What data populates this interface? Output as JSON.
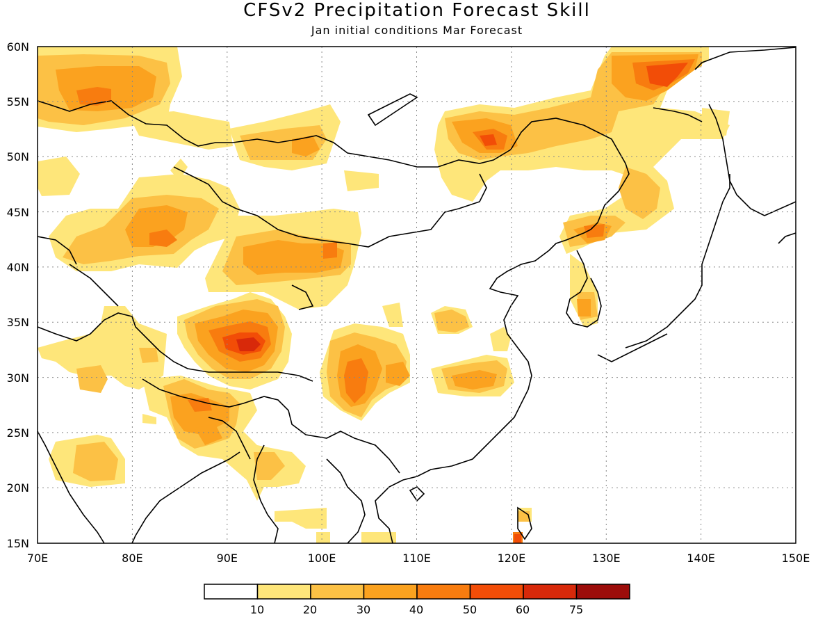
{
  "title": "CFSv2 Precipitation Forecast Skill",
  "subtitle": "Jan initial conditions  Mar Forecast",
  "map": {
    "lon_range": [
      70,
      150
    ],
    "lat_range": [
      15,
      60
    ],
    "lon_ticks": [
      "70E",
      "80E",
      "90E",
      "100E",
      "110E",
      "120E",
      "130E",
      "140E",
      "150E"
    ],
    "lat_ticks": [
      "15N",
      "20N",
      "25N",
      "30N",
      "35N",
      "40N",
      "45N",
      "50N",
      "55N",
      "60N"
    ],
    "grid": "dotted"
  },
  "legend": {
    "colors": [
      "#ffffff",
      "#fee67a",
      "#fcc145",
      "#fba21f",
      "#f87c0f",
      "#f24d07",
      "#d8290a",
      "#9c0d0a"
    ],
    "labels": [
      "10",
      "20",
      "30",
      "40",
      "50",
      "60",
      "75"
    ]
  }
}
